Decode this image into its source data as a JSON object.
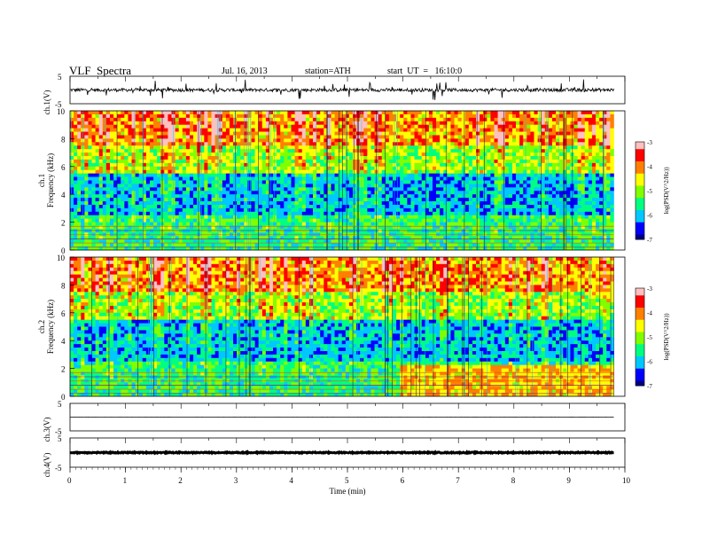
{
  "header": {
    "title": "VLF  Spectra",
    "date": "Jul. 16, 2013",
    "station": "station=ATH",
    "start_time": "start  UT  =   16:10:0"
  },
  "chart_data": [
    {
      "type": "line",
      "panel": "ch1-waveform",
      "ylabel": "ch.1(V)",
      "ylim": [
        -5,
        5
      ],
      "yticks": [
        "5",
        "-5"
      ],
      "xlim": [
        0,
        10
      ],
      "color": "#000000",
      "baseline": 0,
      "noise_amplitude": 1.2,
      "x_end": 9.8
    },
    {
      "type": "heatmap",
      "panel": "ch1-spectrogram",
      "ylabel": "ch.1\nFrequency (kHz)",
      "ylabel_line1": "ch.1",
      "ylabel_line2": "Frequency  (kHz)",
      "ylim": [
        0,
        10
      ],
      "yticks": [
        "0",
        "2",
        "4",
        "6",
        "8",
        "10"
      ],
      "xlim": [
        0,
        10
      ],
      "x_end": 9.8,
      "colorbar": {
        "label": "log(PSD(V^2/Hz))",
        "range": [
          -7,
          -3
        ],
        "ticks": [
          "-3",
          "-4",
          "-5",
          "-6",
          "-7"
        ]
      }
    },
    {
      "type": "heatmap",
      "panel": "ch2-spectrogram",
      "ylabel_line1": "ch.2",
      "ylabel_line2": "Frequency  (kHz)",
      "ylim": [
        0,
        10
      ],
      "yticks": [
        "0",
        "2",
        "4",
        "6",
        "8",
        "10"
      ],
      "xlim": [
        0,
        10
      ],
      "x_end": 9.8,
      "colorbar": {
        "label": "log(PSD(V^2/Hz))",
        "range": [
          -7,
          -3
        ],
        "ticks": [
          "-3",
          "-4",
          "-5",
          "-6",
          "-7"
        ]
      }
    },
    {
      "type": "line",
      "panel": "ch3-waveform",
      "ylabel": "ch.3(V)",
      "ylim": [
        -5,
        5
      ],
      "yticks": [
        "5",
        "-5"
      ],
      "xlim": [
        0,
        10
      ],
      "color": "#000000",
      "baseline": 0,
      "noise_amplitude": 0.05,
      "x_end": 9.8
    },
    {
      "type": "line",
      "panel": "ch4-waveform",
      "ylabel": "ch.4(V)",
      "ylim": [
        -5,
        5
      ],
      "yticks": [
        "5",
        "-5"
      ],
      "xlim": [
        0,
        10
      ],
      "color": "#000000",
      "baseline": 0,
      "noise_amplitude": 0.35,
      "x_end": 9.8
    }
  ],
  "xaxis": {
    "label": "Time  (min)",
    "ticks": [
      "0",
      "1",
      "2",
      "3",
      "4",
      "5",
      "6",
      "7",
      "8",
      "9",
      "10"
    ]
  },
  "colors": {
    "colormap": [
      "#000080",
      "#0000ff",
      "#00c8ff",
      "#00ff80",
      "#80ff00",
      "#ffff00",
      "#ff8000",
      "#ff0000",
      "#ffc0c0"
    ]
  }
}
